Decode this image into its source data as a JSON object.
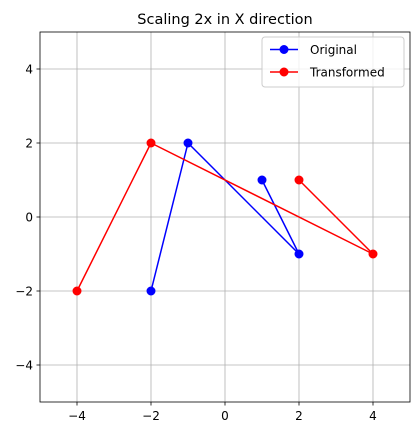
{
  "chart_data": {
    "type": "line",
    "title": "Scaling 2x in X direction",
    "xlabel": "",
    "ylabel": "",
    "xlim": [
      -5,
      5
    ],
    "ylim": [
      -5,
      5
    ],
    "xticks": [
      -4,
      -2,
      0,
      2,
      4
    ],
    "yticks": [
      -4,
      -2,
      0,
      2,
      4
    ],
    "xtick_labels": [
      "−4",
      "−2",
      "0",
      "2",
      "4"
    ],
    "ytick_labels": [
      "−4",
      "−2",
      "0",
      "2",
      "4"
    ],
    "grid": true,
    "aspect": "equal",
    "legend_position": "top-right",
    "series": [
      {
        "name": "Original",
        "color": "#0000ff",
        "marker": "circle",
        "points": [
          [
            1,
            1
          ],
          [
            2,
            -1
          ],
          [
            -1,
            2
          ],
          [
            -2,
            -2
          ]
        ]
      },
      {
        "name": "Transformed",
        "color": "#ff0000",
        "marker": "circle",
        "points": [
          [
            2,
            1
          ],
          [
            4,
            -1
          ],
          [
            -2,
            2
          ],
          [
            -4,
            -2
          ]
        ]
      }
    ]
  }
}
